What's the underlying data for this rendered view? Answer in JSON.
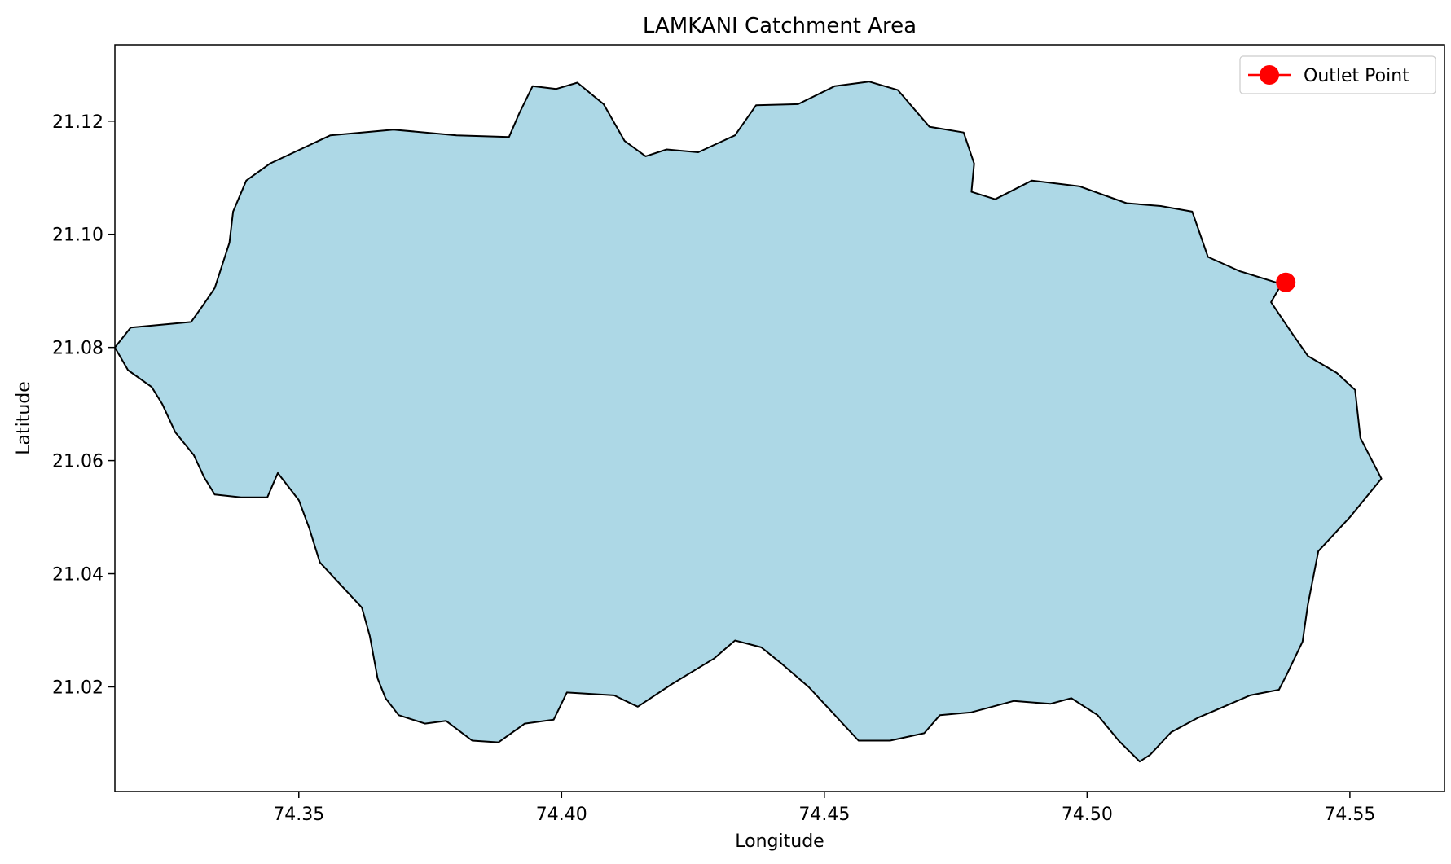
{
  "chart_data": {
    "type": "map",
    "title": "LAMKANI Catchment Area",
    "xlabel": "Longitude",
    "ylabel": "Latitude",
    "xlim": [
      74.315,
      74.568
    ],
    "ylim": [
      21.0015,
      21.1335
    ],
    "xticks": [
      74.35,
      74.4,
      74.45,
      74.5,
      74.55
    ],
    "xtick_labels": [
      "74.35",
      "74.40",
      "74.45",
      "74.50",
      "74.55"
    ],
    "yticks": [
      21.02,
      21.04,
      21.06,
      21.08,
      21.1,
      21.12
    ],
    "ytick_labels": [
      "21.02",
      "21.04",
      "21.06",
      "21.08",
      "21.10",
      "21.12"
    ],
    "grid": false,
    "legend": {
      "position": "top-right",
      "entries": [
        "Outlet Point"
      ]
    },
    "outlet_point": {
      "label": "Outlet Point",
      "lon": 74.5378,
      "lat": 21.0915,
      "color": "#ff0000"
    },
    "catchment": {
      "fill_color": "#add8e6",
      "edge_color": "#000000",
      "boundary": [
        [
          74.3295,
          21.0845
        ],
        [
          74.3318,
          21.0875
        ],
        [
          74.334,
          21.0905
        ],
        [
          74.3368,
          21.0985
        ],
        [
          74.3375,
          21.104
        ],
        [
          74.34,
          21.1095
        ],
        [
          74.3445,
          21.1125
        ],
        [
          74.356,
          21.1175
        ],
        [
          74.368,
          21.1185
        ],
        [
          74.38,
          21.1175
        ],
        [
          74.39,
          21.1172
        ],
        [
          74.392,
          21.1215
        ],
        [
          74.3945,
          21.1262
        ],
        [
          74.399,
          21.1257
        ],
        [
          74.403,
          21.1268
        ],
        [
          74.408,
          21.123
        ],
        [
          74.412,
          21.1165
        ],
        [
          74.416,
          21.1138
        ],
        [
          74.42,
          21.115
        ],
        [
          74.426,
          21.1145
        ],
        [
          74.433,
          21.1175
        ],
        [
          74.437,
          21.1228
        ],
        [
          74.445,
          21.123
        ],
        [
          74.452,
          21.1262
        ],
        [
          74.4585,
          21.127
        ],
        [
          74.464,
          21.1255
        ],
        [
          74.47,
          21.119
        ],
        [
          74.4765,
          21.118
        ],
        [
          74.4785,
          21.1125
        ],
        [
          74.478,
          21.1075
        ],
        [
          74.4825,
          21.1062
        ],
        [
          74.4895,
          21.1095
        ],
        [
          74.4985,
          21.1085
        ],
        [
          74.5075,
          21.1055
        ],
        [
          74.514,
          21.105
        ],
        [
          74.52,
          21.104
        ],
        [
          74.523,
          21.096
        ],
        [
          74.529,
          21.0935
        ],
        [
          74.537,
          21.0912
        ],
        [
          74.535,
          21.088
        ],
        [
          74.539,
          21.0825
        ],
        [
          74.542,
          21.0785
        ],
        [
          74.5475,
          21.0755
        ],
        [
          74.551,
          21.0725
        ],
        [
          74.552,
          21.064
        ],
        [
          74.556,
          21.0568
        ],
        [
          74.55,
          21.05
        ],
        [
          74.544,
          21.044
        ],
        [
          74.542,
          21.0345
        ],
        [
          74.541,
          21.028
        ],
        [
          74.538,
          21.0222
        ],
        [
          74.5365,
          21.0195
        ],
        [
          74.531,
          21.0185
        ],
        [
          74.526,
          21.0165
        ],
        [
          74.521,
          21.0145
        ],
        [
          74.516,
          21.012
        ],
        [
          74.512,
          21.008
        ],
        [
          74.51,
          21.0068
        ],
        [
          74.506,
          21.0105
        ],
        [
          74.502,
          21.015
        ],
        [
          74.497,
          21.018
        ],
        [
          74.493,
          21.017
        ],
        [
          74.486,
          21.0175
        ],
        [
          74.478,
          21.0155
        ],
        [
          74.472,
          21.015
        ],
        [
          74.469,
          21.0118
        ],
        [
          74.4625,
          21.0105
        ],
        [
          74.4565,
          21.0105
        ],
        [
          74.453,
          21.014
        ],
        [
          74.447,
          21.02
        ],
        [
          74.442,
          21.024
        ],
        [
          74.438,
          21.027
        ],
        [
          74.433,
          21.0282
        ],
        [
          74.429,
          21.025
        ],
        [
          74.421,
          21.0205
        ],
        [
          74.4145,
          21.0165
        ],
        [
          74.41,
          21.0185
        ],
        [
          74.401,
          21.019
        ],
        [
          74.3985,
          21.0142
        ],
        [
          74.393,
          21.0135
        ],
        [
          74.388,
          21.0102
        ],
        [
          74.383,
          21.0105
        ],
        [
          74.378,
          21.014
        ],
        [
          74.374,
          21.0135
        ],
        [
          74.369,
          21.015
        ],
        [
          74.3665,
          21.018
        ],
        [
          74.365,
          21.0215
        ],
        [
          74.3635,
          21.029
        ],
        [
          74.362,
          21.034
        ],
        [
          74.358,
          21.038
        ],
        [
          74.354,
          21.042
        ],
        [
          74.352,
          21.048
        ],
        [
          74.35,
          21.053
        ],
        [
          74.346,
          21.0578
        ],
        [
          74.344,
          21.0535
        ],
        [
          74.339,
          21.0535
        ],
        [
          74.334,
          21.054
        ],
        [
          74.332,
          21.057
        ],
        [
          74.33,
          21.061
        ],
        [
          74.3265,
          21.065
        ],
        [
          74.324,
          21.07
        ],
        [
          74.322,
          21.073
        ],
        [
          74.3175,
          21.076
        ],
        [
          74.315,
          21.08
        ],
        [
          74.318,
          21.0835
        ],
        [
          74.3295,
          21.0845
        ]
      ]
    }
  }
}
